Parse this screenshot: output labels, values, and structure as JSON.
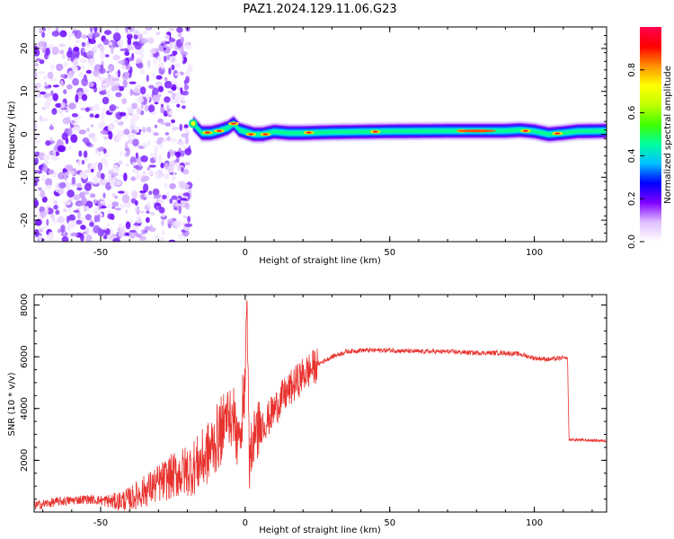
{
  "title": "PAZ1.2024.129.11.06.G23",
  "chart_data": [
    {
      "type": "heatmap",
      "xlabel": "Height of straight line (km)",
      "ylabel": "Frequency (Hz)",
      "xlim": [
        -73,
        125
      ],
      "ylim": [
        -25,
        25
      ],
      "xticks": [
        -50,
        0,
        50,
        100
      ],
      "yticks": [
        -20,
        -10,
        0,
        10,
        20
      ],
      "colorbar": {
        "label": "Normalized spectral amplitude",
        "range": [
          0,
          1
        ],
        "ticks": [
          0.0,
          0.2,
          0.4,
          0.6,
          0.8
        ],
        "colors": [
          "#ffffff",
          "#e0c0ff",
          "#8000ff",
          "#0000ff",
          "#00c0ff",
          "#00ffa0",
          "#40ff00",
          "#c0ff00",
          "#ffff00",
          "#ff9000",
          "#ff0000",
          "#ff0050"
        ]
      },
      "noise_region_x": [
        -73,
        -19
      ],
      "ridge": {
        "x": [
          -18,
          -15,
          -12,
          -9,
          -6,
          -4,
          -2,
          0,
          3,
          6,
          10,
          15,
          20,
          30,
          50,
          70,
          80,
          90,
          95,
          100,
          105,
          110,
          115,
          125
        ],
        "frequency": [
          2.5,
          0.3,
          0.3,
          0.8,
          1.5,
          2.5,
          1.0,
          0.6,
          0.0,
          0.0,
          0.6,
          0.3,
          0.3,
          0.5,
          0.7,
          0.8,
          0.8,
          0.8,
          1.0,
          0.7,
          0.0,
          0.3,
          0.7,
          0.8
        ]
      }
    },
    {
      "type": "line",
      "xlabel": "Height of straight line (km)",
      "ylabel": "SNR (10 * v/v)",
      "xlim": [
        -73,
        125
      ],
      "ylim": [
        0,
        8400
      ],
      "xticks": [
        -50,
        0,
        50,
        100
      ],
      "yticks": [
        2000,
        4000,
        6000,
        8000
      ],
      "color": "#e8322e",
      "series": [
        {
          "x": [
            -73,
            -65,
            -55,
            -45,
            -40,
            -35,
            -30,
            -25,
            -20,
            -17,
            -14,
            -11,
            -8,
            -6,
            -4,
            -2,
            0,
            0.5,
            1.5,
            3,
            5,
            8,
            12,
            16,
            20,
            25,
            30,
            35,
            40,
            50,
            60,
            70,
            80,
            90,
            95,
            100,
            105,
            110,
            111.5,
            112,
            125
          ],
          "y": [
            250,
            400,
            500,
            400,
            500,
            800,
            1100,
            1400,
            1600,
            1800,
            2100,
            2600,
            3200,
            3700,
            3500,
            2500,
            5000,
            8400,
            1500,
            2900,
            3300,
            3600,
            4300,
            4800,
            5300,
            5700,
            6000,
            6200,
            6250,
            6250,
            6200,
            6200,
            6150,
            6150,
            6100,
            5950,
            5900,
            5950,
            5950,
            2800,
            2750
          ]
        }
      ]
    }
  ]
}
